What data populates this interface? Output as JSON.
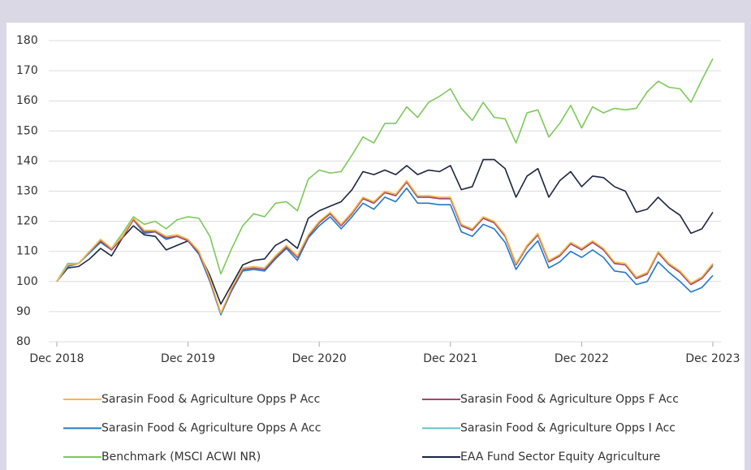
{
  "chart_data": {
    "type": "line",
    "categories": [
      "Dec 2018",
      null,
      null,
      null,
      null,
      null,
      null,
      null,
      null,
      null,
      null,
      null,
      "Dec 2019",
      null,
      null,
      null,
      null,
      null,
      null,
      null,
      null,
      null,
      null,
      null,
      "Dec 2020",
      null,
      null,
      null,
      null,
      null,
      null,
      null,
      null,
      null,
      null,
      null,
      "Dec 2021",
      null,
      null,
      null,
      null,
      null,
      null,
      null,
      null,
      null,
      null,
      null,
      "Dec 2022",
      null,
      null,
      null,
      null,
      null,
      null,
      null,
      null,
      null,
      null,
      null,
      "Dec 2023"
    ],
    "ylim": [
      80,
      180
    ],
    "yticks": [
      80,
      90,
      100,
      110,
      120,
      130,
      140,
      150,
      160,
      170,
      180
    ],
    "grid": true,
    "legend": "bottom",
    "series": [
      {
        "name": "Sarasin Food & Agriculture Opps P Acc",
        "color": "#f5b942",
        "values": [
          100,
          105.5,
          106,
          110,
          114,
          111,
          115,
          121,
          117,
          117,
          115,
          115.5,
          114,
          110,
          101,
          89.5,
          98,
          104.5,
          105,
          104.5,
          108.5,
          112,
          108.5,
          115.5,
          120,
          123,
          119,
          123,
          128,
          126.5,
          130,
          129,
          133.5,
          128.5,
          128.5,
          128,
          128,
          119,
          117.5,
          121.5,
          120,
          115.5,
          106,
          112,
          116,
          107,
          109,
          113,
          111,
          113.5,
          111,
          106.5,
          106,
          101.5,
          103,
          110,
          106,
          103.5,
          99.5,
          101.5,
          106
        ]
      },
      {
        "name": "Sarasin Food & Agriculture Opps F Acc",
        "color": "#a8456b",
        "values": [
          100,
          105.5,
          106,
          110,
          113.5,
          110.5,
          114.5,
          120.5,
          116.5,
          116.5,
          114.5,
          115,
          113.5,
          109.5,
          100.5,
          89.5,
          97.5,
          104,
          104.5,
          104,
          108,
          111.5,
          108,
          115,
          119.5,
          122.5,
          118.5,
          122.5,
          127.5,
          126,
          129.5,
          128.5,
          133,
          128,
          128,
          127.5,
          127.5,
          118.5,
          117,
          121,
          119.5,
          115,
          105.5,
          111.5,
          115.5,
          106.5,
          108.5,
          112.5,
          110.5,
          113,
          110.5,
          106,
          105.5,
          101,
          102.5,
          109.5,
          105.5,
          103,
          99,
          101,
          105.5
        ]
      },
      {
        "name": "Sarasin Food & Agriculture Opps A Acc",
        "color": "#1f78c8",
        "values": [
          100,
          105,
          106,
          109.5,
          113,
          110.5,
          114.5,
          120.5,
          116,
          116.5,
          114,
          115,
          113.5,
          109,
          100,
          89,
          97,
          103.5,
          104,
          103.5,
          107.5,
          111,
          107,
          114.5,
          118.5,
          121.5,
          117.5,
          121.5,
          126,
          124,
          128,
          126.5,
          131,
          126,
          126,
          125.5,
          125.5,
          116.5,
          115,
          119,
          117.5,
          113,
          104,
          109.5,
          113.5,
          104.5,
          106.5,
          110,
          108,
          110.5,
          108,
          103.5,
          103,
          99,
          100,
          106.5,
          103,
          100,
          96.5,
          98,
          102
        ]
      },
      {
        "name": "Sarasin Food & Agriculture Opps I Acc",
        "color": "#5ec4c8",
        "values": [
          100,
          106,
          106,
          110,
          113.5,
          111,
          115,
          121,
          116.5,
          117,
          115,
          115.5,
          114,
          110,
          101,
          89,
          98,
          104,
          104.5,
          104,
          108.5,
          112,
          108,
          115,
          119.5,
          122.5,
          118.5,
          123,
          127.5,
          126.5,
          129.5,
          128.5,
          133,
          128,
          128,
          128,
          127.5,
          118.5,
          117,
          121,
          119.5,
          115,
          105.5,
          112,
          115.5,
          106.5,
          108.5,
          112.5,
          110.5,
          113,
          110.5,
          106,
          105.5,
          101,
          102.5,
          109.5,
          105.5,
          103,
          99,
          101,
          105
        ]
      },
      {
        "name": "Benchmark (MSCI ACWI NR)",
        "color": "#7dc95a",
        "values": [
          100,
          105,
          106,
          110,
          114,
          111,
          116,
          121.5,
          119,
          120,
          117.5,
          120.5,
          121.5,
          121,
          115,
          102.5,
          111,
          118.5,
          122.5,
          121.5,
          126,
          126.5,
          123.5,
          134,
          137,
          136,
          136.5,
          142,
          148,
          146,
          152.5,
          152.5,
          158,
          154.5,
          159.5,
          161.5,
          164,
          157.5,
          153.5,
          159.5,
          154.5,
          154,
          146,
          156,
          157,
          148,
          152.5,
          158.5,
          151,
          158,
          156,
          157.5,
          157,
          157.5,
          163,
          166.5,
          164.5,
          164,
          159.5,
          167,
          174
        ]
      },
      {
        "name": "EAA Fund Sector Equity Agriculture",
        "color": "#1c2541",
        "values": [
          100,
          104.5,
          105,
          107.5,
          111,
          108.5,
          114.5,
          118.5,
          115.5,
          115,
          110.5,
          112,
          113.5,
          109.5,
          102,
          92.5,
          99,
          105.5,
          107,
          107.5,
          112,
          114,
          111,
          121,
          123.5,
          125,
          126.5,
          130.5,
          136.5,
          135.5,
          137,
          135.5,
          138.5,
          135.5,
          137,
          136.5,
          138.5,
          130.5,
          131.5,
          140.5,
          140.5,
          137.5,
          128,
          135,
          137.5,
          128,
          133.5,
          136.5,
          131.5,
          135,
          134.5,
          131.5,
          130,
          123,
          124,
          128,
          124.5,
          122,
          116,
          117.5,
          123
        ]
      }
    ]
  }
}
